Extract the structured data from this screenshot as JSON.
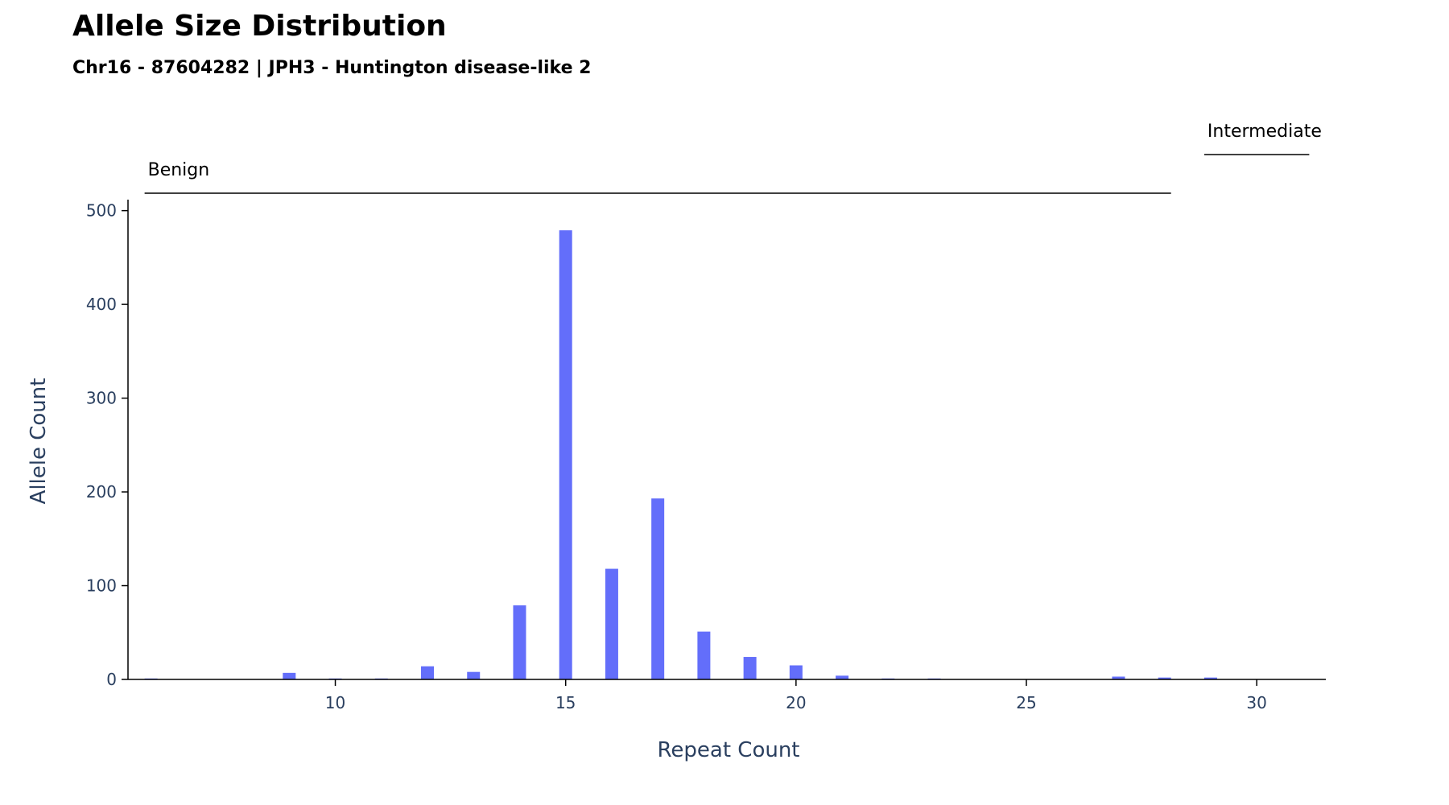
{
  "chart_data": {
    "type": "bar",
    "title": "Allele Size Distribution",
    "subtitle": "Chr16 - 87604282 | JPH3 - Huntington disease-like 2",
    "xlabel": "Repeat Count",
    "ylabel": "Allele Count",
    "xlim": [
      5.5,
      31.5
    ],
    "ylim": [
      0,
      510
    ],
    "xticks": [
      10,
      15,
      20,
      25,
      30
    ],
    "yticks": [
      0,
      100,
      200,
      300,
      400,
      500
    ],
    "grid": false,
    "bar_color": "#636efa",
    "x": [
      6,
      9,
      10,
      11,
      12,
      13,
      14,
      15,
      16,
      17,
      18,
      19,
      20,
      21,
      22,
      23,
      27,
      28,
      29
    ],
    "values": [
      1,
      7,
      1,
      1,
      14,
      8,
      79,
      479,
      118,
      193,
      51,
      24,
      15,
      4,
      1,
      1,
      3,
      2,
      2
    ],
    "ranges": [
      {
        "label": "Benign",
        "start": 6,
        "end": 28,
        "level": "lower"
      },
      {
        "label": "Intermediate",
        "start": 29,
        "end": 31,
        "level": "upper"
      }
    ]
  }
}
